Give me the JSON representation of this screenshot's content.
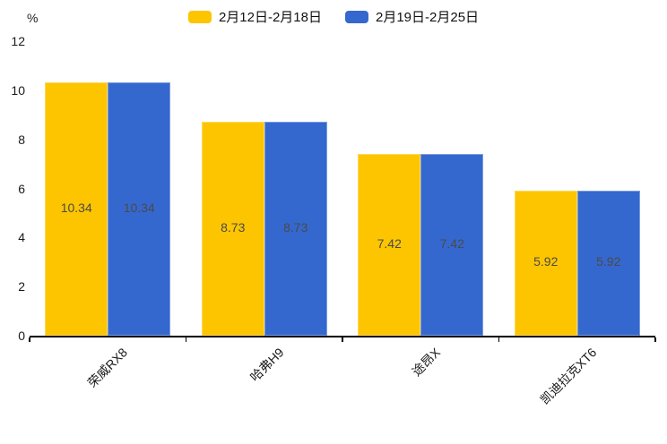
{
  "chart_data": {
    "type": "bar",
    "title": "",
    "ylabel": "%",
    "categories": [
      "荣威RX8",
      "哈弗H9",
      "途昂X",
      "凯迪拉克XT6"
    ],
    "series": [
      {
        "name": "2月12日-2月18日",
        "color": "#FDC500",
        "values": [
          10.34,
          8.73,
          7.42,
          5.92
        ]
      },
      {
        "name": "2月19日-2月25日",
        "color": "#3568CE",
        "values": [
          10.34,
          8.73,
          7.42,
          5.92
        ]
      }
    ],
    "yticks": [
      0,
      2,
      4,
      6,
      8,
      10,
      12
    ],
    "ylim": [
      0,
      12
    ],
    "grid": false,
    "legend_position": "top-center",
    "value_label_position": "inside-center",
    "x_label_rotation_deg": -45,
    "axis_color": "#000000",
    "value_label_color": "#4a4a4a"
  }
}
